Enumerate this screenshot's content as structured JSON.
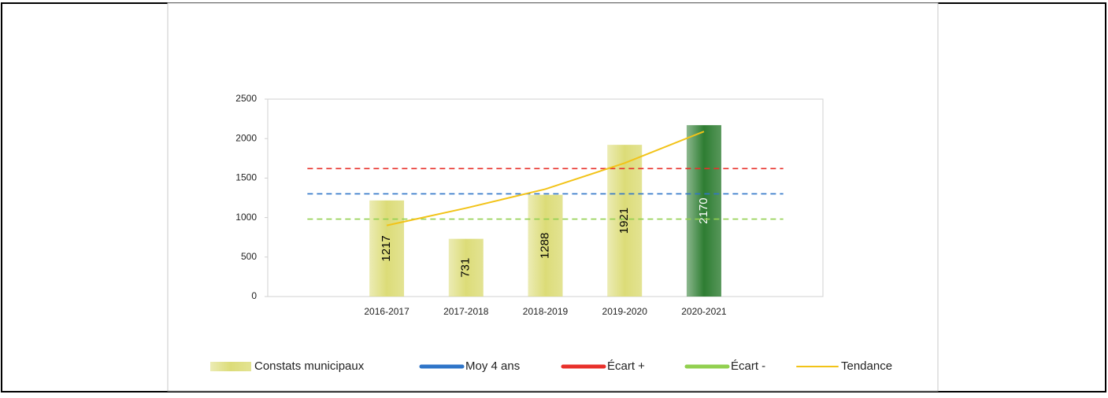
{
  "chart_data": {
    "type": "bar",
    "categories": [
      null,
      "2016-2017",
      "2017-2018",
      "2018-2019",
      "2019-2020",
      "2020-2021",
      null
    ],
    "series": [
      {
        "name": "Constats municipaux",
        "type": "bar",
        "color": "#dcdc78",
        "colors": [
          "#dcdc78",
          "#dcdc78",
          "#dcdc78",
          "#dcdc78",
          "#dcdc78",
          "#2e7d32",
          "#dcdc78"
        ],
        "label_colors": [
          "#000",
          "#000",
          "#000",
          "#000",
          "#000",
          "#ffffff",
          "#000"
        ],
        "values": [
          null,
          1217,
          731,
          1288,
          1921,
          2170,
          null
        ]
      },
      {
        "name": "Moy 4 ans",
        "type": "line",
        "color": "#2f75c8",
        "style": "dashed",
        "values": [
          1300,
          1300,
          1300,
          1300,
          1300,
          1300,
          1300
        ]
      },
      {
        "name": "Écart +",
        "type": "line",
        "color": "#e8312b",
        "style": "dashed",
        "values": [
          1620,
          1620,
          1620,
          1620,
          1620,
          1620,
          1620
        ]
      },
      {
        "name": "Écart -",
        "type": "line",
        "color": "#92d050",
        "style": "dashed",
        "values": [
          980,
          980,
          980,
          980,
          980,
          980,
          980
        ]
      },
      {
        "name": "Tendance",
        "type": "line",
        "color": "#f2c318",
        "style": "solid",
        "values": [
          null,
          900,
          1120,
          1360,
          1690,
          2090,
          null
        ]
      }
    ],
    "ylim": [
      0,
      2500
    ],
    "yticks": [
      0,
      500,
      1000,
      1500,
      2000,
      2500
    ],
    "grid": false,
    "legend": "bottom"
  }
}
